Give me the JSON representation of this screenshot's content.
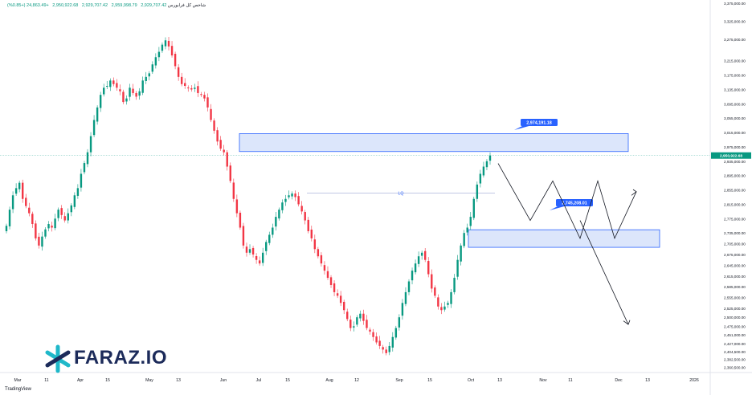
{
  "header": {
    "symbol": "شاخص کل فرابورس",
    "o": "2,929,707.42",
    "h": "2,959,998.79",
    "l": "2,929,707.42",
    "c": "2,950,922.68",
    "change": "+24,863.49 (+0.85%)"
  },
  "branding": {
    "logo_text": "FARAZ.IO",
    "tradingview": "TradingView"
  },
  "colors": {
    "up": "#089981",
    "down": "#f23645",
    "zone_fill": "#dce6fb",
    "zone_stroke": "#2962ff",
    "label_bg": "#2962ff",
    "price_label_bg": "#089981",
    "line": "#131722"
  },
  "chart_data": {
    "type": "candlestick",
    "title": "",
    "ylim": [
      2346000,
      3380000
    ],
    "y_ticks": [
      "3,375,000.00",
      "3,325,000.00",
      "3,275,000.00",
      "3,215,000.00",
      "3,175,000.00",
      "3,135,000.00",
      "3,095,000.00",
      "3,055,000.00",
      "3,015,000.00",
      "2,975,000.00",
      "2,935,000.00",
      "2,895,000.00",
      "2,855,000.00",
      "2,815,000.00",
      "2,775,000.00",
      "2,735,000.00",
      "2,705,000.00",
      "2,675,000.00",
      "2,645,000.00",
      "2,615,000.00",
      "2,585,000.00",
      "2,555,000.00",
      "2,525,000.00",
      "2,500,000.00",
      "2,475,000.00",
      "2,451,000.00",
      "2,427,000.00",
      "2,404,500.00",
      "2,382,500.00",
      "2,360,500.00",
      "2,339,000.00"
    ],
    "x_ticks": [
      "Mar",
      "11",
      "Apr",
      "15",
      "May",
      "13",
      "Jun",
      "Jul",
      "15",
      "Aug",
      "12",
      "Sep",
      "15",
      "Oct",
      "13",
      "Nov",
      "11",
      "Dec",
      "13",
      "2026"
    ],
    "last_price_label": "2,950,922.68",
    "resistance_zone": {
      "low": 2962000,
      "high": 3012000,
      "label": "2,974,191.18"
    },
    "support_zone": {
      "low": 2695000,
      "high": 2744000,
      "label": "2,745,208.01"
    },
    "lq_level": {
      "value": 2846000,
      "label": "LQ"
    },
    "closes": [
      2755000,
      2800000,
      2840000,
      2860000,
      2875000,
      2830000,
      2810000,
      2790000,
      2760000,
      2720000,
      2700000,
      2725000,
      2745000,
      2760000,
      2750000,
      2775000,
      2800000,
      2785000,
      2770000,
      2790000,
      2812000,
      2840000,
      2860000,
      2900000,
      2930000,
      2960000,
      3005000,
      3050000,
      3085000,
      3120000,
      3140000,
      3145000,
      3160000,
      3150000,
      3140000,
      3130000,
      3100000,
      3110000,
      3140000,
      3125000,
      3115000,
      3130000,
      3160000,
      3170000,
      3180000,
      3205000,
      3225000,
      3240000,
      3260000,
      3272000,
      3255000,
      3230000,
      3200000,
      3170000,
      3150000,
      3145000,
      3140000,
      3135000,
      3140000,
      3125000,
      3120000,
      3110000,
      3085000,
      3050000,
      3020000,
      2990000,
      2970000,
      2960000,
      2920000,
      2880000,
      2830000,
      2790000,
      2750000,
      2700000,
      2680000,
      2690000,
      2675000,
      2660000,
      2650000,
      2680000,
      2710000,
      2730000,
      2750000,
      2780000,
      2800000,
      2820000,
      2830000,
      2840000,
      2845000,
      2835000,
      2815000,
      2795000,
      2770000,
      2740000,
      2720000,
      2690000,
      2670000,
      2650000,
      2630000,
      2610000,
      2590000,
      2570000,
      2560000,
      2540000,
      2520000,
      2495000,
      2470000,
      2475000,
      2500000,
      2510000,
      2490000,
      2470000,
      2460000,
      2445000,
      2430000,
      2420000,
      2410000,
      2400000,
      2420000,
      2445000,
      2470000,
      2500000,
      2540000,
      2570000,
      2600000,
      2630000,
      2650000,
      2670000,
      2680000,
      2660000,
      2620000,
      2580000,
      2560000,
      2530000,
      2520000,
      2530000,
      2540000,
      2570000,
      2610000,
      2660000,
      2700000,
      2735000,
      2750000,
      2780000,
      2830000,
      2870000,
      2900000,
      2920000,
      2935000,
      2950922
    ],
    "projection_a": [
      [
        0,
        2929000
      ],
      [
        1,
        2770000
      ],
      [
        2,
        2880000
      ],
      [
        3,
        2720000
      ],
      [
        4,
        2880000
      ],
      [
        5,
        2720000
      ],
      [
        6,
        2850000
      ]
    ],
    "projection_b": [
      [
        0,
        2770000
      ],
      [
        1,
        2480000
      ]
    ]
  }
}
